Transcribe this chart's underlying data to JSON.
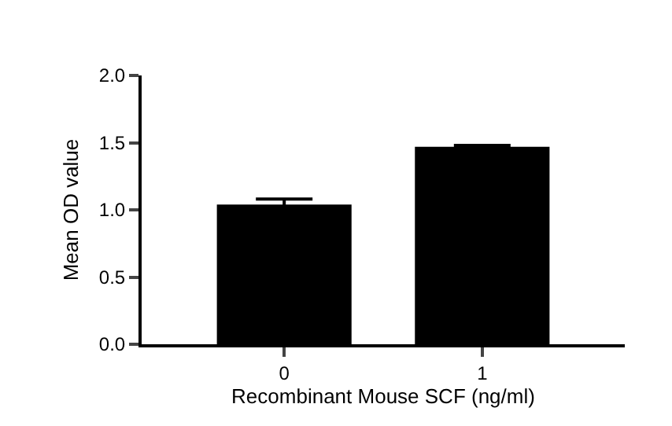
{
  "chart_data": {
    "type": "bar",
    "xlabel": "Recombinant Mouse SCF (ng/ml)",
    "ylabel": "Mean OD value",
    "categories": [
      "0",
      "1"
    ],
    "values": [
      1.04,
      1.47
    ],
    "errors": [
      0.04,
      0.01
    ],
    "color": "#000000",
    "ylim": [
      0,
      2.0
    ],
    "yticks": [
      {
        "value": 0,
        "label": "0.0"
      },
      {
        "value": 0.5,
        "label": "0.5"
      },
      {
        "value": 1.0,
        "label": "1.0"
      },
      {
        "value": 1.5,
        "label": "1.5"
      },
      {
        "value": 2.0,
        "label": "2.0"
      }
    ]
  }
}
